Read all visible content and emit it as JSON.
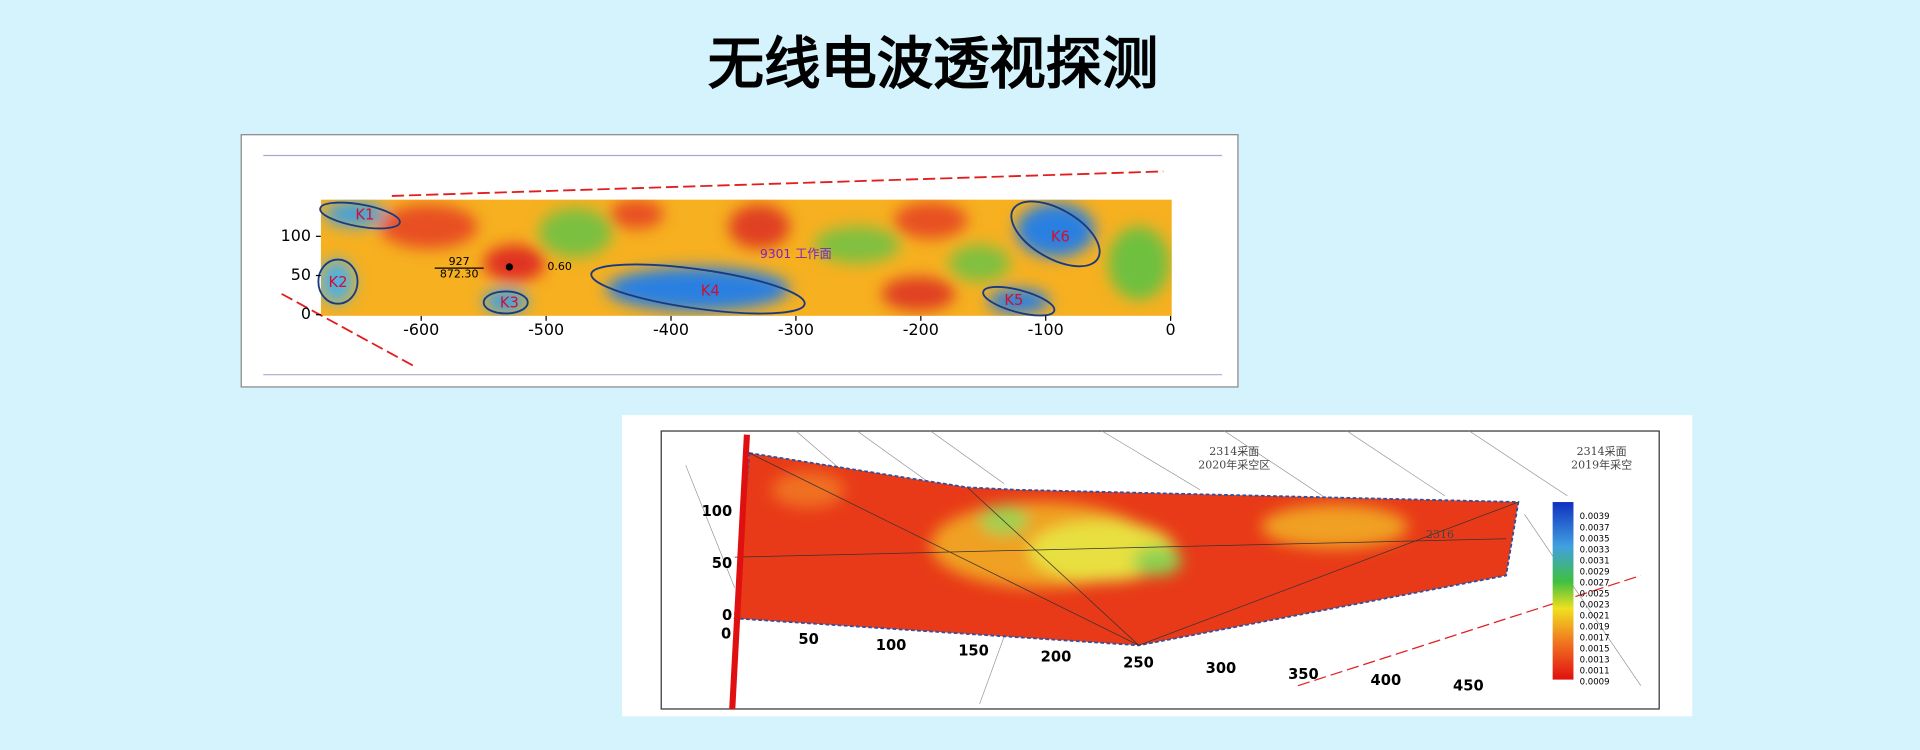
{
  "title": "无线电波透视探测",
  "panel1": {
    "face_label": "9301 工作面",
    "anomalies": [
      "K1",
      "K2",
      "K3",
      "K4",
      "K5",
      "K6"
    ],
    "point_top": "927",
    "point_bottom": "872.30",
    "point_value": "0.60",
    "xticks": [
      -600,
      -500,
      -400,
      -300,
      -200,
      -100,
      0
    ],
    "yticks": [
      0,
      50,
      100
    ]
  },
  "panel2": {
    "labels": [
      "2314采面",
      "2020年采空区",
      "2314采面",
      "2019年采空",
      "2316"
    ],
    "xticks": [
      0,
      50,
      100,
      150,
      200,
      250,
      300,
      350,
      400,
      450
    ],
    "yticks": [
      0,
      50,
      100
    ],
    "legend": [
      0.0039,
      0.0037,
      0.0035,
      0.0033,
      0.0031,
      0.0029,
      0.0027,
      0.0025,
      0.0023,
      0.0021,
      0.0019,
      0.0017,
      0.0015,
      0.0013,
      0.0011,
      0.0009
    ]
  }
}
